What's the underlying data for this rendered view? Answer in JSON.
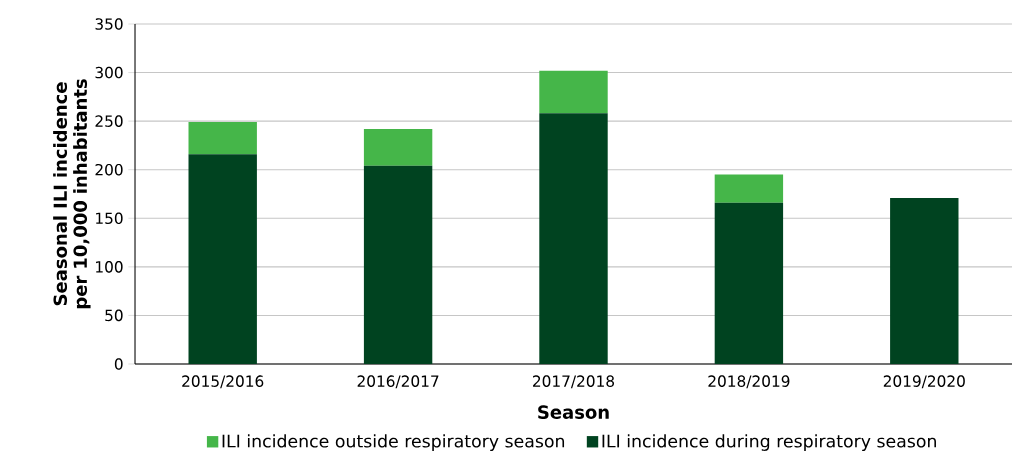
{
  "chart_data": {
    "type": "bar",
    "stacked": true,
    "xlabel": "Season",
    "ylabel": "Seasonal ILI incidence per 10,000 inhabitants",
    "categories": [
      "2015/2016",
      "2016/2017",
      "2017/2018",
      "2018/2019",
      "2019/2020"
    ],
    "series": [
      {
        "name": "ILI incidence during respiratory season",
        "color": "#004320",
        "values": [
          216,
          204,
          258,
          166,
          171
        ]
      },
      {
        "name": "ILI incidence outside respiratory season",
        "color": "#45b649",
        "values": [
          33,
          38,
          44,
          29,
          null
        ]
      }
    ],
    "ylim": [
      0,
      350
    ],
    "yticks": [
      0,
      50,
      100,
      150,
      200,
      250,
      300,
      350
    ],
    "grid": "y",
    "legend": "bottom"
  }
}
